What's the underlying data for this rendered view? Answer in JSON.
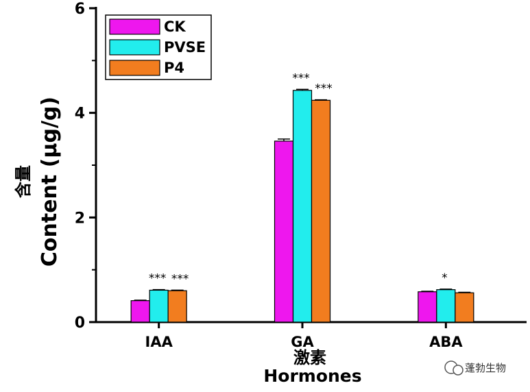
{
  "chart_data": {
    "type": "bar",
    "title": "",
    "categories": [
      "IAA",
      "GA",
      "ABA"
    ],
    "series": [
      {
        "name": "CK",
        "color": "#ee17ee",
        "values": [
          0.41,
          3.46,
          0.58
        ],
        "errors": [
          0.01,
          0.04,
          0.01
        ]
      },
      {
        "name": "PVSE",
        "color": "#22eded",
        "values": [
          0.61,
          4.43,
          0.62
        ],
        "errors": [
          0.01,
          0.02,
          0.01
        ]
      },
      {
        "name": "P4",
        "color": "#f27d1f",
        "values": [
          0.6,
          4.24,
          0.56
        ],
        "errors": [
          0.01,
          0.01,
          0.01
        ]
      }
    ],
    "significance": [
      {
        "category": "IAA",
        "series": "PVSE",
        "label": "***"
      },
      {
        "category": "IAA",
        "series": "P4",
        "label": "***"
      },
      {
        "category": "GA",
        "series": "PVSE",
        "label": "***"
      },
      {
        "category": "GA",
        "series": "P4",
        "label": "***"
      },
      {
        "category": "ABA",
        "series": "PVSE",
        "label": "*"
      }
    ],
    "ylim": [
      0,
      6
    ],
    "yticks": [
      "0",
      "2",
      "4",
      "6"
    ],
    "ylabel_cn": "含量",
    "ylabel": "Content (μg/g)",
    "xlabel_cn": "激素",
    "xlabel": "Hormones",
    "legend_position": "top-left"
  },
  "watermark": {
    "text": "蓬勃生物"
  }
}
